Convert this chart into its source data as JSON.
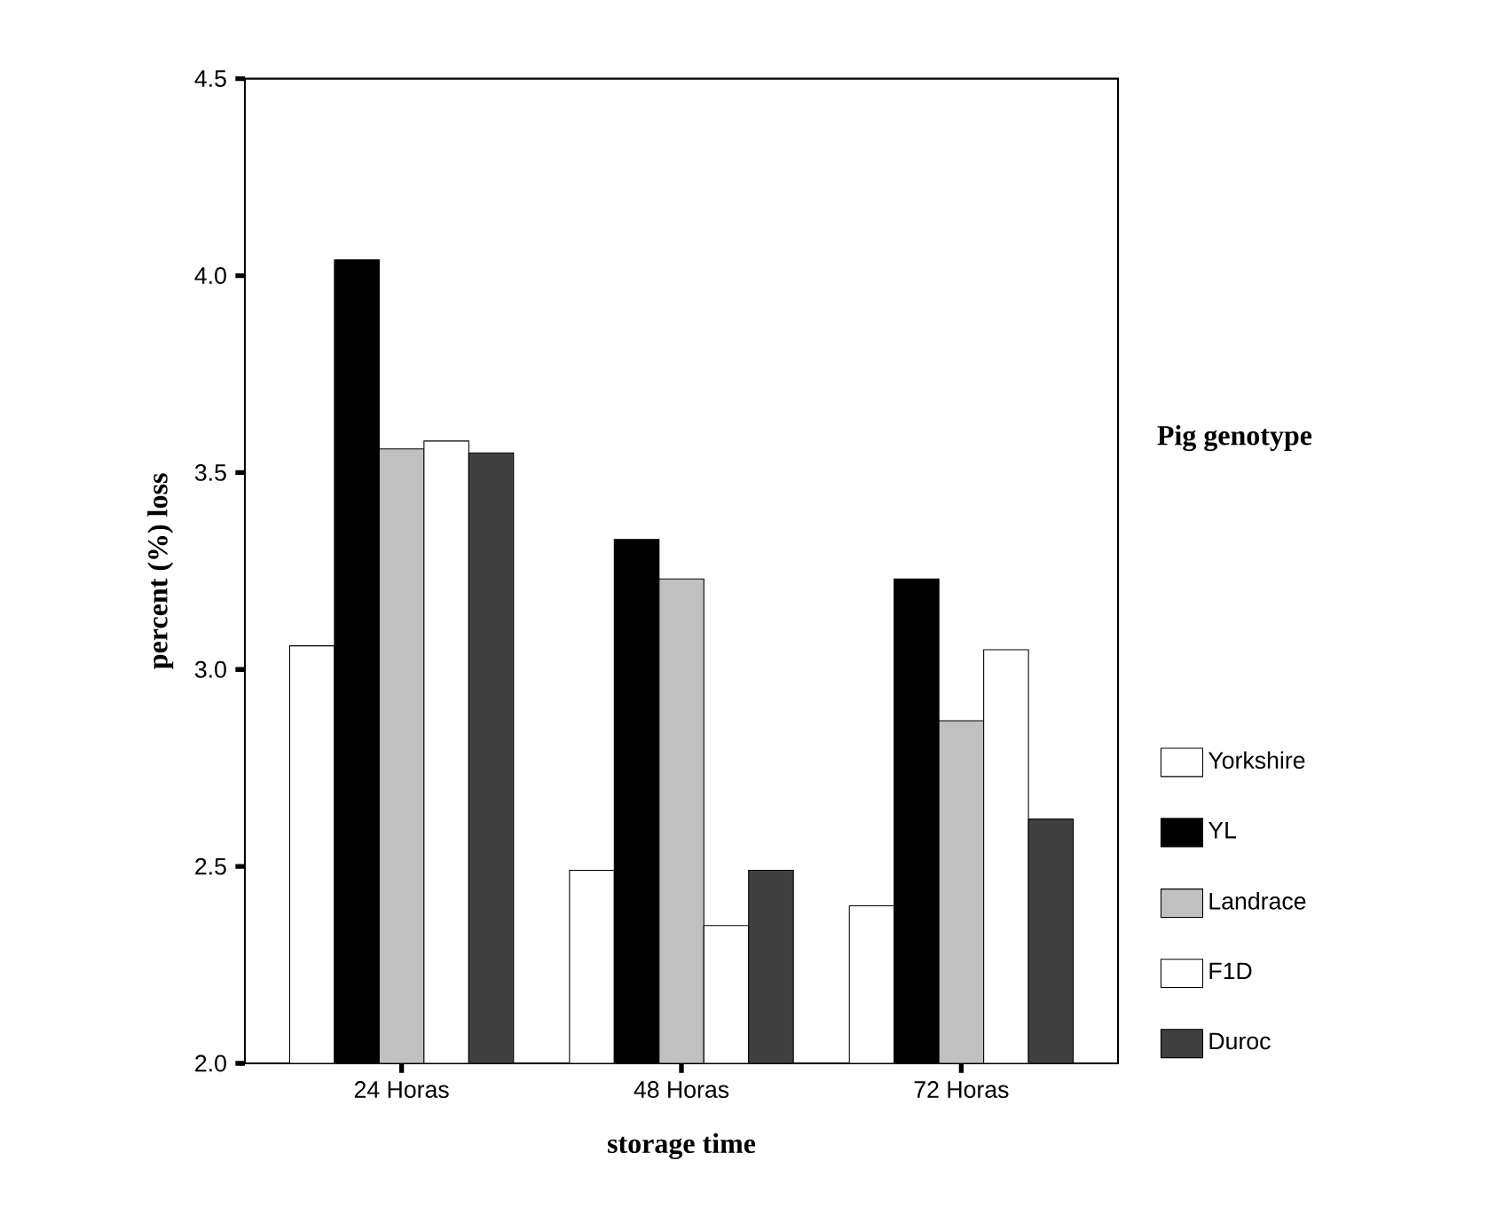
{
  "chart_data": {
    "type": "bar",
    "xlabel": "storage time",
    "ylabel": "percent (%) loss",
    "legend_title": "Pig genotype",
    "categories": [
      "24 Horas",
      "48 Horas",
      "72 Horas"
    ],
    "series": [
      {
        "name": "Yorkshire",
        "color": "#ffffff",
        "values": [
          3.06,
          2.49,
          2.4
        ]
      },
      {
        "name": "YL",
        "color": "#000000",
        "values": [
          4.04,
          3.33,
          3.23
        ]
      },
      {
        "name": "Landrace",
        "color": "#c0c0c0",
        "values": [
          3.56,
          3.23,
          2.87
        ]
      },
      {
        "name": "F1D",
        "color": "#ffffff",
        "values": [
          3.58,
          2.35,
          3.05
        ]
      },
      {
        "name": "Duroc",
        "color": "#404040",
        "values": [
          3.55,
          2.49,
          2.62
        ]
      }
    ],
    "ylim": [
      2.0,
      4.5
    ],
    "yticks": [
      {
        "value": 2.0,
        "label": "2.0"
      },
      {
        "value": 2.5,
        "label": "2.5"
      },
      {
        "value": 3.0,
        "label": "3.0"
      },
      {
        "value": 3.5,
        "label": "3.5"
      },
      {
        "value": 4.0,
        "label": "4.0"
      },
      {
        "value": 4.5,
        "label": "4.5"
      }
    ],
    "legend": "right",
    "grid": false
  }
}
